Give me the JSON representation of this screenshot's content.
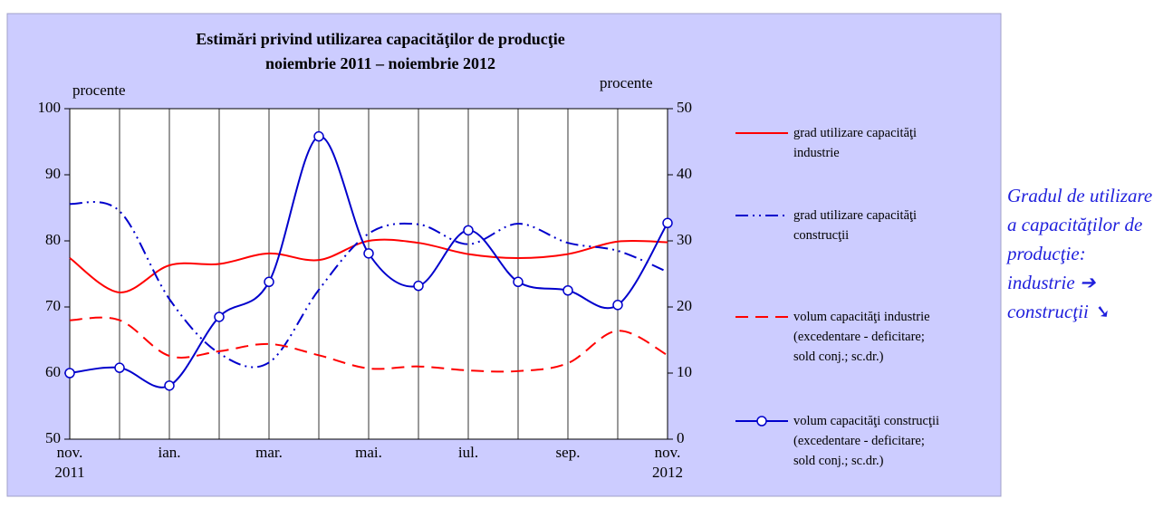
{
  "chart_data": {
    "type": "line",
    "title": "Estimări privind utilizarea capacităţilor de producţie",
    "subtitle": "noiembrie 2011 – noiembrie 2012",
    "ylabel": "procente",
    "y2label": "procente",
    "categories": [
      "nov. 2011",
      null,
      "ian.",
      null,
      "mar.",
      null,
      "mai.",
      null,
      "iul.",
      null,
      "sep.",
      null,
      "nov. 2012"
    ],
    "ylim": [
      50,
      100
    ],
    "yticks": [
      50,
      60,
      70,
      80,
      90,
      100
    ],
    "y2lim": [
      0,
      50
    ],
    "y2ticks": [
      0,
      10,
      20,
      30,
      40,
      50
    ],
    "grid": "x",
    "series": [
      {
        "name": "grad utilizare capacităţi industrie",
        "color": "#ff0000",
        "dash": "solid",
        "values": [
          77.4,
          72.2,
          76.3,
          76.5,
          78.1,
          77.1,
          80.0,
          79.7,
          78.0,
          77.4,
          78.0,
          79.9,
          79.8
        ]
      },
      {
        "name": "grad utilizare capacităţi construcţii",
        "color": "#0000cc",
        "dash": "dashdot",
        "values": [
          85.6,
          84.5,
          71.2,
          63.0,
          61.6,
          72.6,
          81.1,
          82.5,
          79.5,
          82.6,
          79.7,
          78.5,
          75.3
        ]
      },
      {
        "name": "volum capacităţi industrie (excedentare - deficitare; sold conj.; sc.dr.)",
        "color": "#ff0000",
        "dash": "dashed",
        "axis": "y2",
        "values": [
          18.0,
          18.0,
          12.6,
          13.3,
          14.4,
          12.7,
          10.7,
          11.0,
          10.4,
          10.3,
          11.5,
          16.4,
          12.7
        ]
      },
      {
        "name": "volum capacităţi construcţii (excedentare - deficitare; sold conj.; sc.dr.)",
        "color": "#0000cc",
        "dash": "solid",
        "marker": "circle",
        "axis": "y2",
        "values": [
          10.0,
          10.8,
          8.1,
          18.5,
          23.8,
          45.8,
          28.1,
          23.2,
          31.6,
          23.8,
          22.5,
          20.3,
          32.7
        ]
      }
    ],
    "annotation": "Gradul de utilizare a capacităţilor de producţie:",
    "annotation_items": [
      "industrie ➔",
      "construcţii ➘"
    ]
  }
}
